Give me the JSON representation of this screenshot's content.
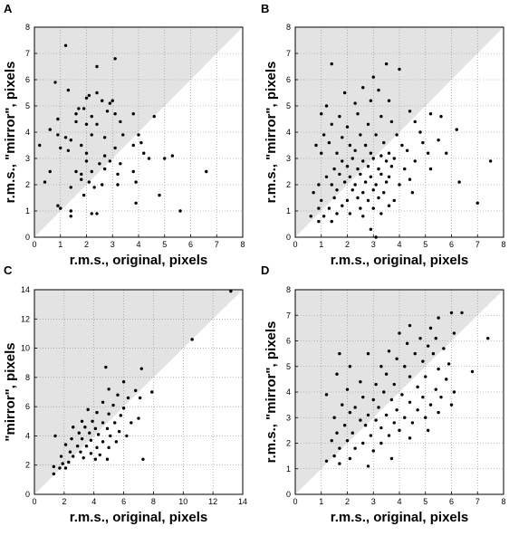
{
  "chart_data": [
    {
      "panel": "A",
      "type": "scatter",
      "xlabel": "r.m.s., original, pixels",
      "ylabel": "r.m.s., \"mirror\", pixels",
      "xlim": [
        0,
        8
      ],
      "ylim": [
        0,
        8
      ],
      "xticks": [
        0,
        1,
        2,
        3,
        4,
        5,
        6,
        7,
        8
      ],
      "yticks": [
        0,
        1,
        2,
        3,
        4,
        5,
        6,
        7,
        8
      ],
      "grid": true,
      "shaded_region": "above y = x",
      "points": [
        [
          1.2,
          7.3
        ],
        [
          2.4,
          6.5
        ],
        [
          3.1,
          6.8
        ],
        [
          0.8,
          5.9
        ],
        [
          1.3,
          5.6
        ],
        [
          2.0,
          5.3
        ],
        [
          2.1,
          5.4
        ],
        [
          2.4,
          5.5
        ],
        [
          2.6,
          5.2
        ],
        [
          3.0,
          5.2
        ],
        [
          1.7,
          4.9
        ],
        [
          1.9,
          4.9
        ],
        [
          2.9,
          5.1
        ],
        [
          1.6,
          4.7
        ],
        [
          2.2,
          4.6
        ],
        [
          2.8,
          4.8
        ],
        [
          3.1,
          4.7
        ],
        [
          3.8,
          4.7
        ],
        [
          0.9,
          4.5
        ],
        [
          1.6,
          4.4
        ],
        [
          2.0,
          4.3
        ],
        [
          2.4,
          4.3
        ],
        [
          3.3,
          4.4
        ],
        [
          4.6,
          4.6
        ],
        [
          0.6,
          4.1
        ],
        [
          0.9,
          3.9
        ],
        [
          1.2,
          3.8
        ],
        [
          1.4,
          3.7
        ],
        [
          1.8,
          3.5
        ],
        [
          2.2,
          3.9
        ],
        [
          2.7,
          3.8
        ],
        [
          3.4,
          3.9
        ],
        [
          4.0,
          3.9
        ],
        [
          0.2,
          3.5
        ],
        [
          1.0,
          3.4
        ],
        [
          1.3,
          3.3
        ],
        [
          2.0,
          3.2
        ],
        [
          2.7,
          3.1
        ],
        [
          3.1,
          3.4
        ],
        [
          3.8,
          3.5
        ],
        [
          4.1,
          3.6
        ],
        [
          4.2,
          3.2
        ],
        [
          4.4,
          3.0
        ],
        [
          2.0,
          2.9
        ],
        [
          2.5,
          2.8
        ],
        [
          2.9,
          2.9
        ],
        [
          3.3,
          2.8
        ],
        [
          0.6,
          2.5
        ],
        [
          1.6,
          2.5
        ],
        [
          1.8,
          2.4
        ],
        [
          2.2,
          2.5
        ],
        [
          2.7,
          2.6
        ],
        [
          3.2,
          2.4
        ],
        [
          3.8,
          2.5
        ],
        [
          0.4,
          2.1
        ],
        [
          1.8,
          2.2
        ],
        [
          2.1,
          2.1
        ],
        [
          2.6,
          2.0
        ],
        [
          3.9,
          2.1
        ],
        [
          1.4,
          1.9
        ],
        [
          1.9,
          1.6
        ],
        [
          2.3,
          1.9
        ],
        [
          3.2,
          2.0
        ],
        [
          5.0,
          3.0
        ],
        [
          5.3,
          3.1
        ],
        [
          6.6,
          2.5
        ],
        [
          4.8,
          1.6
        ],
        [
          3.9,
          1.3
        ],
        [
          0.9,
          1.2
        ],
        [
          1.0,
          1.1
        ],
        [
          1.4,
          1.0
        ],
        [
          2.2,
          0.9
        ],
        [
          2.4,
          0.9
        ],
        [
          1.4,
          0.8
        ],
        [
          5.6,
          1.0
        ]
      ]
    },
    {
      "panel": "B",
      "type": "scatter",
      "xlabel": "r.m.s., original, pixels",
      "ylabel": "r.m.s., \"mirror\", pixels",
      "xlim": [
        0,
        8
      ],
      "ylim": [
        0,
        8
      ],
      "xticks": [
        0,
        1,
        2,
        3,
        4,
        5,
        6,
        7,
        8
      ],
      "yticks": [
        0,
        1,
        2,
        3,
        4,
        5,
        6,
        7,
        8
      ],
      "grid": true,
      "shaded_region": "above y = x",
      "points": [
        [
          1.4,
          6.6
        ],
        [
          3.5,
          6.6
        ],
        [
          4.0,
          6.4
        ],
        [
          3.0,
          6.1
        ],
        [
          1.9,
          5.5
        ],
        [
          2.6,
          5.7
        ],
        [
          3.2,
          5.6
        ],
        [
          1.2,
          5.0
        ],
        [
          2.3,
          5.1
        ],
        [
          2.9,
          5.2
        ],
        [
          3.6,
          5.2
        ],
        [
          1.0,
          4.7
        ],
        [
          1.7,
          4.6
        ],
        [
          2.4,
          4.7
        ],
        [
          3.3,
          4.6
        ],
        [
          4.4,
          4.8
        ],
        [
          5.2,
          4.7
        ],
        [
          1.4,
          4.3
        ],
        [
          2.0,
          4.2
        ],
        [
          2.8,
          4.3
        ],
        [
          3.7,
          4.4
        ],
        [
          4.6,
          4.4
        ],
        [
          5.6,
          4.6
        ],
        [
          1.1,
          3.9
        ],
        [
          1.8,
          3.8
        ],
        [
          2.5,
          3.9
        ],
        [
          3.1,
          3.9
        ],
        [
          3.9,
          3.9
        ],
        [
          4.8,
          4.0
        ],
        [
          6.2,
          4.1
        ],
        [
          0.8,
          3.5
        ],
        [
          1.3,
          3.6
        ],
        [
          2.1,
          3.5
        ],
        [
          2.7,
          3.5
        ],
        [
          3.4,
          3.6
        ],
        [
          4.1,
          3.5
        ],
        [
          4.9,
          3.6
        ],
        [
          5.5,
          3.7
        ],
        [
          1.0,
          3.2
        ],
        [
          1.6,
          3.2
        ],
        [
          2.3,
          3.3
        ],
        [
          2.9,
          3.2
        ],
        [
          3.3,
          3.1
        ],
        [
          3.6,
          3.2
        ],
        [
          4.3,
          3.3
        ],
        [
          5.1,
          3.2
        ],
        [
          5.8,
          3.2
        ],
        [
          1.8,
          2.9
        ],
        [
          2.2,
          3.0
        ],
        [
          2.6,
          2.9
        ],
        [
          3.0,
          3.0
        ],
        [
          3.5,
          2.9
        ],
        [
          3.8,
          3.0
        ],
        [
          4.6,
          2.9
        ],
        [
          7.5,
          2.9
        ],
        [
          1.5,
          2.6
        ],
        [
          2.0,
          2.7
        ],
        [
          2.4,
          2.6
        ],
        [
          2.8,
          2.7
        ],
        [
          3.2,
          2.6
        ],
        [
          3.7,
          2.7
        ],
        [
          4.2,
          2.6
        ],
        [
          5.2,
          2.6
        ],
        [
          1.2,
          2.3
        ],
        [
          1.7,
          2.4
        ],
        [
          2.1,
          2.3
        ],
        [
          2.5,
          2.4
        ],
        [
          2.9,
          2.3
        ],
        [
          3.3,
          2.4
        ],
        [
          3.6,
          2.3
        ],
        [
          4.4,
          2.2
        ],
        [
          6.3,
          2.1
        ],
        [
          0.9,
          2.0
        ],
        [
          1.4,
          2.0
        ],
        [
          1.9,
          2.1
        ],
        [
          2.3,
          2.0
        ],
        [
          2.7,
          2.1
        ],
        [
          3.1,
          2.0
        ],
        [
          3.5,
          2.1
        ],
        [
          4.0,
          2.0
        ],
        [
          0.7,
          1.7
        ],
        [
          1.6,
          1.8
        ],
        [
          2.2,
          1.8
        ],
        [
          2.6,
          1.7
        ],
        [
          3.0,
          1.8
        ],
        [
          3.4,
          1.7
        ],
        [
          4.5,
          1.7
        ],
        [
          1.0,
          1.4
        ],
        [
          1.5,
          1.5
        ],
        [
          2.0,
          1.4
        ],
        [
          2.4,
          1.5
        ],
        [
          2.8,
          1.4
        ],
        [
          3.2,
          1.5
        ],
        [
          3.8,
          1.4
        ],
        [
          7.0,
          1.3
        ],
        [
          0.9,
          1.1
        ],
        [
          1.3,
          1.1
        ],
        [
          1.8,
          1.2
        ],
        [
          2.5,
          1.1
        ],
        [
          3.0,
          1.1
        ],
        [
          3.6,
          1.2
        ],
        [
          0.6,
          0.8
        ],
        [
          1.1,
          0.8
        ],
        [
          1.6,
          0.9
        ],
        [
          2.1,
          0.9
        ],
        [
          2.6,
          0.8
        ],
        [
          3.3,
          0.9
        ],
        [
          0.9,
          0.6
        ],
        [
          1.4,
          0.6
        ],
        [
          2.9,
          0.3
        ],
        [
          3.1,
          0.0
        ]
      ]
    },
    {
      "panel": "C",
      "type": "scatter",
      "xlabel": "r.m.s., original, pixels",
      "ylabel": "\"mirror\", pixels",
      "xlim": [
        0,
        14
      ],
      "ylim": [
        0,
        14
      ],
      "xticks": [
        0,
        2,
        4,
        6,
        8,
        10,
        12,
        14
      ],
      "yticks": [
        0,
        2,
        4,
        6,
        8,
        10,
        12,
        14
      ],
      "grid": true,
      "shaded_region": "above y = x",
      "points": [
        [
          13.2,
          13.9
        ],
        [
          10.6,
          10.6
        ],
        [
          4.8,
          8.7
        ],
        [
          7.2,
          8.6
        ],
        [
          6.0,
          7.7
        ],
        [
          5.0,
          7.2
        ],
        [
          6.8,
          7.1
        ],
        [
          7.9,
          7.0
        ],
        [
          5.6,
          6.8
        ],
        [
          6.3,
          6.6
        ],
        [
          7.1,
          6.6
        ],
        [
          4.6,
          6.3
        ],
        [
          5.3,
          6.1
        ],
        [
          6.0,
          5.9
        ],
        [
          3.6,
          5.8
        ],
        [
          4.2,
          5.6
        ],
        [
          5.0,
          5.5
        ],
        [
          5.8,
          5.4
        ],
        [
          7.0,
          5.2
        ],
        [
          3.2,
          5.0
        ],
        [
          3.9,
          5.0
        ],
        [
          4.6,
          4.9
        ],
        [
          5.4,
          4.9
        ],
        [
          6.5,
          4.9
        ],
        [
          2.6,
          4.6
        ],
        [
          3.4,
          4.6
        ],
        [
          4.1,
          4.5
        ],
        [
          4.9,
          4.5
        ],
        [
          5.7,
          4.3
        ],
        [
          3.0,
          4.2
        ],
        [
          3.7,
          4.2
        ],
        [
          4.3,
          4.1
        ],
        [
          5.1,
          4.0
        ],
        [
          6.2,
          4.0
        ],
        [
          1.4,
          4.0
        ],
        [
          2.5,
          3.8
        ],
        [
          3.2,
          3.8
        ],
        [
          3.8,
          3.7
        ],
        [
          4.6,
          3.6
        ],
        [
          5.5,
          3.6
        ],
        [
          2.1,
          3.4
        ],
        [
          2.9,
          3.3
        ],
        [
          3.5,
          3.3
        ],
        [
          4.2,
          3.2
        ],
        [
          5.0,
          3.2
        ],
        [
          2.4,
          2.9
        ],
        [
          3.1,
          2.9
        ],
        [
          3.8,
          2.8
        ],
        [
          4.4,
          2.7
        ],
        [
          1.8,
          2.6
        ],
        [
          2.6,
          2.6
        ],
        [
          3.3,
          2.5
        ],
        [
          4.1,
          2.4
        ],
        [
          4.9,
          2.4
        ],
        [
          7.3,
          2.4
        ],
        [
          1.9,
          2.1
        ],
        [
          2.3,
          2.2
        ],
        [
          1.3,
          1.9
        ],
        [
          1.7,
          1.8
        ],
        [
          2.1,
          1.8
        ],
        [
          1.3,
          1.4
        ]
      ]
    },
    {
      "panel": "D",
      "type": "scatter",
      "xlabel": "r.m.s., original, pixels",
      "ylabel": "r.m.s., \"mirror\", pixels",
      "xlim": [
        0,
        8
      ],
      "ylim": [
        0,
        8
      ],
      "xticks": [
        0,
        1,
        2,
        3,
        4,
        5,
        6,
        7,
        8
      ],
      "yticks": [
        0,
        1,
        2,
        3,
        4,
        5,
        6,
        7,
        8
      ],
      "grid": true,
      "shaded_region": "above y = x",
      "points": [
        [
          6.0,
          7.1
        ],
        [
          6.4,
          7.1
        ],
        [
          5.5,
          6.9
        ],
        [
          4.4,
          6.6
        ],
        [
          5.2,
          6.5
        ],
        [
          4.0,
          6.3
        ],
        [
          6.1,
          6.3
        ],
        [
          4.8,
          6.1
        ],
        [
          5.4,
          6.1
        ],
        [
          7.4,
          6.1
        ],
        [
          4.3,
          5.9
        ],
        [
          5.1,
          5.8
        ],
        [
          5.7,
          5.7
        ],
        [
          3.6,
          5.6
        ],
        [
          4.6,
          5.5
        ],
        [
          5.3,
          5.5
        ],
        [
          2.8,
          5.5
        ],
        [
          1.7,
          5.5
        ],
        [
          3.9,
          5.3
        ],
        [
          4.9,
          5.2
        ],
        [
          5.9,
          5.1
        ],
        [
          2.1,
          5.0
        ],
        [
          3.3,
          5.0
        ],
        [
          4.2,
          5.0
        ],
        [
          5.5,
          4.9
        ],
        [
          6.8,
          4.8
        ],
        [
          1.6,
          4.7
        ],
        [
          3.5,
          4.7
        ],
        [
          4.4,
          4.6
        ],
        [
          5.0,
          4.6
        ],
        [
          5.8,
          4.5
        ],
        [
          2.5,
          4.4
        ],
        [
          3.1,
          4.3
        ],
        [
          3.8,
          4.3
        ],
        [
          4.7,
          4.2
        ],
        [
          5.4,
          4.1
        ],
        [
          6.1,
          4.0
        ],
        [
          2.0,
          4.1
        ],
        [
          3.4,
          4.0
        ],
        [
          4.1,
          3.9
        ],
        [
          4.9,
          3.8
        ],
        [
          5.6,
          3.8
        ],
        [
          1.2,
          3.9
        ],
        [
          2.6,
          3.8
        ],
        [
          3.0,
          3.7
        ],
        [
          3.7,
          3.7
        ],
        [
          4.4,
          3.6
        ],
        [
          5.2,
          3.5
        ],
        [
          6.0,
          3.5
        ],
        [
          1.8,
          3.5
        ],
        [
          2.3,
          3.4
        ],
        [
          3.2,
          3.4
        ],
        [
          3.9,
          3.3
        ],
        [
          4.7,
          3.3
        ],
        [
          5.5,
          3.2
        ],
        [
          2.1,
          3.2
        ],
        [
          2.8,
          3.1
        ],
        [
          3.5,
          3.1
        ],
        [
          4.2,
          3.0
        ],
        [
          5.0,
          3.0
        ],
        [
          1.5,
          3.0
        ],
        [
          2.5,
          2.9
        ],
        [
          3.1,
          2.9
        ],
        [
          3.8,
          2.8
        ],
        [
          4.5,
          2.8
        ],
        [
          1.9,
          2.7
        ],
        [
          2.7,
          2.7
        ],
        [
          3.3,
          2.6
        ],
        [
          4.0,
          2.5
        ],
        [
          5.1,
          2.5
        ],
        [
          1.6,
          2.4
        ],
        [
          2.2,
          2.4
        ],
        [
          2.9,
          2.3
        ],
        [
          3.6,
          2.3
        ],
        [
          4.4,
          2.2
        ],
        [
          1.4,
          2.1
        ],
        [
          2.0,
          2.1
        ],
        [
          2.6,
          2.0
        ],
        [
          3.3,
          2.0
        ],
        [
          1.7,
          1.8
        ],
        [
          2.3,
          1.8
        ],
        [
          3.0,
          1.7
        ],
        [
          1.5,
          1.5
        ],
        [
          2.1,
          1.4
        ],
        [
          3.7,
          1.4
        ],
        [
          1.2,
          1.3
        ],
        [
          1.7,
          1.2
        ],
        [
          2.8,
          1.1
        ]
      ]
    }
  ]
}
